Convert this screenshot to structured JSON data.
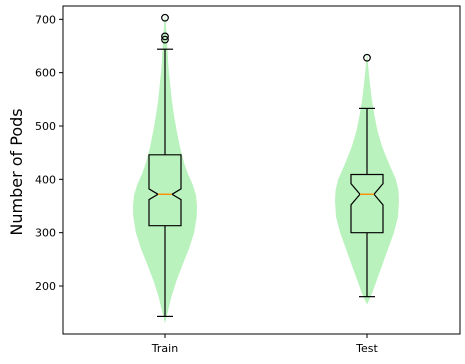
{
  "chart_data": {
    "type": "violin+box",
    "title": "",
    "xlabel": "",
    "ylabel": "Number of Pods",
    "categories": [
      "Train",
      "Test"
    ],
    "ylim": [
      110,
      725
    ],
    "yticks": [
      200,
      300,
      400,
      500,
      600,
      700
    ],
    "grid": false,
    "colors": {
      "violin_fill": "#b9f2bd",
      "median_line": "#ff8c00",
      "box_line": "#000000"
    },
    "series": [
      {
        "name": "Train",
        "box": {
          "whisker_low": 143,
          "q1": 313,
          "median": 372,
          "q3": 446,
          "whisker_high": 644,
          "notch_low": 362,
          "notch_high": 382
        },
        "outliers": [
          703,
          668,
          662
        ],
        "violin": {
          "y": [
            130,
            150,
            180,
            210,
            240,
            270,
            300,
            330,
            350,
            370,
            390,
            410,
            430,
            460,
            490,
            520,
            550,
            580,
            610,
            640,
            670,
            700,
            710
          ],
          "density": [
            0.0,
            0.08,
            0.2,
            0.36,
            0.55,
            0.75,
            0.91,
            0.99,
            1.0,
            0.97,
            0.87,
            0.72,
            0.6,
            0.47,
            0.37,
            0.28,
            0.21,
            0.16,
            0.11,
            0.08,
            0.05,
            0.02,
            0.0
          ]
        }
      },
      {
        "name": "Test",
        "box": {
          "whisker_low": 180,
          "q1": 300,
          "median": 372,
          "q3": 409,
          "whisker_high": 533,
          "notch_low": 352,
          "notch_high": 392
        },
        "outliers": [
          628
        ],
        "violin": {
          "y": [
            165,
            185,
            210,
            240,
            270,
            300,
            330,
            360,
            380,
            400,
            430,
            460,
            490,
            520,
            550,
            580,
            610,
            640
          ],
          "density": [
            0.0,
            0.15,
            0.3,
            0.48,
            0.66,
            0.84,
            0.97,
            1.0,
            0.98,
            0.9,
            0.68,
            0.48,
            0.33,
            0.23,
            0.15,
            0.09,
            0.04,
            0.0
          ]
        }
      }
    ]
  }
}
